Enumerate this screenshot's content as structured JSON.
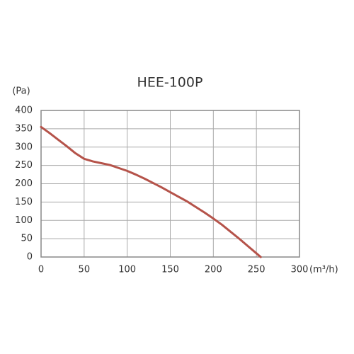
{
  "chart_data": {
    "type": "line",
    "title": "HEE-100P",
    "y_label": "(Pa)",
    "x_label": "(m³/h)",
    "x": [
      0,
      10,
      20,
      30,
      40,
      50,
      60,
      70,
      80,
      90,
      100,
      110,
      120,
      130,
      140,
      150,
      160,
      170,
      180,
      190,
      200,
      210,
      220,
      230,
      240,
      250,
      255
    ],
    "series": [
      {
        "name": "HEE-100P",
        "color": "#b5534a",
        "values": [
          355,
          338,
          320,
          302,
          283,
          268,
          261,
          256,
          251,
          243,
          235,
          225,
          214,
          202,
          190,
          177,
          164,
          151,
          136,
          121,
          105,
          88,
          69,
          50,
          30,
          10,
          0
        ]
      }
    ],
    "xlim": [
      0,
      300
    ],
    "xticks": [
      0,
      50,
      100,
      150,
      200,
      250,
      300
    ],
    "ylim": [
      0,
      400
    ],
    "yticks": [
      0,
      50,
      100,
      150,
      200,
      250,
      300,
      350,
      400
    ],
    "grid": true
  }
}
